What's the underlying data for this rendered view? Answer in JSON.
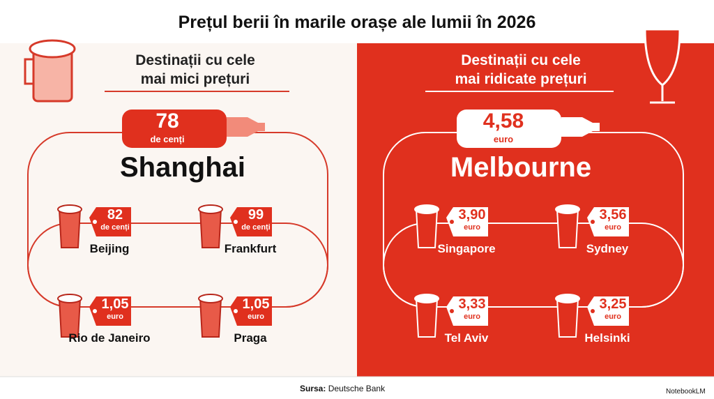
{
  "title": "Prețul berii în marile orașe ale lumii în 2026",
  "panels": [
    {
      "heading": [
        "Destinații cu cele",
        "mai mici prețuri"
      ],
      "featured": {
        "value": "78",
        "unit": "de cenți",
        "city": "Shanghai"
      },
      "items": [
        {
          "value": "82",
          "unit": "de cenți",
          "city": "Beijing"
        },
        {
          "value": "99",
          "unit": "de cenți",
          "city": "Frankfurt"
        },
        {
          "value": "1,05",
          "unit": "euro",
          "city": "Rio de Janeiro"
        },
        {
          "value": "1,05",
          "unit": "euro",
          "city": "Praga"
        }
      ]
    },
    {
      "heading": [
        "Destinații cu cele",
        "mai ridicate prețuri"
      ],
      "featured": {
        "value": "4,58",
        "unit": "euro",
        "city": "Melbourne"
      },
      "items": [
        {
          "value": "3,90",
          "unit": "euro",
          "city": "Singapore"
        },
        {
          "value": "3,56",
          "unit": "euro",
          "city": "Sydney"
        },
        {
          "value": "3,33",
          "unit": "euro",
          "city": "Tel Aviv"
        },
        {
          "value": "3,25",
          "unit": "euro",
          "city": "Helsinki"
        }
      ]
    }
  ],
  "footer": {
    "source_label": "Sursa:",
    "source": "Deutsche Bank",
    "brand": "NotebookLM"
  }
}
